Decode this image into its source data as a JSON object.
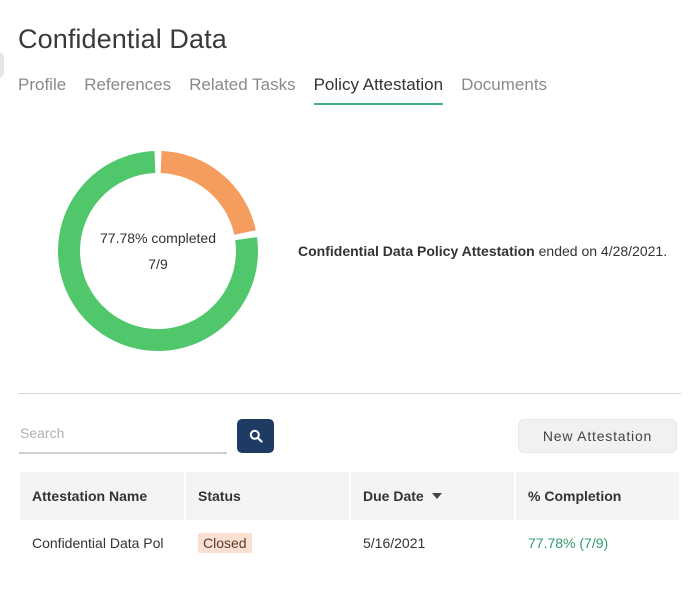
{
  "page": {
    "title": "Confidential Data"
  },
  "tabs": [
    {
      "label": "Profile",
      "active": false
    },
    {
      "label": "References",
      "active": false
    },
    {
      "label": "Related Tasks",
      "active": false
    },
    {
      "label": "Policy Attestation",
      "active": true
    },
    {
      "label": "Documents",
      "active": false
    }
  ],
  "progress": {
    "percent_label": "77.78% completed",
    "count_label": "7/9",
    "completed": 7,
    "total": 9,
    "completed_color": "#50c76b",
    "remaining_color": "#f49d5f"
  },
  "summary": {
    "policy_name": "Confidential Data Policy Attestation",
    "suffix": " ended on 4/28/2021."
  },
  "search": {
    "placeholder": "Search",
    "value": "",
    "icon": "search-icon"
  },
  "actions": {
    "new_attestation": "New Attestation"
  },
  "table": {
    "headers": [
      "Attestation Name",
      "Status",
      "Due Date",
      "% Completion"
    ],
    "sort_icon": "caret-down-icon",
    "rows": [
      {
        "name": "Confidential Data Pol",
        "status": "Closed",
        "due_date": "5/16/2021",
        "completion": "77.78% (7/9)"
      }
    ]
  },
  "colors": {
    "accent": "#3fb27f",
    "primary_button": "#1d3b63",
    "status_closed_bg": "#fbe0d2",
    "completion_text": "#2e9b6b"
  }
}
